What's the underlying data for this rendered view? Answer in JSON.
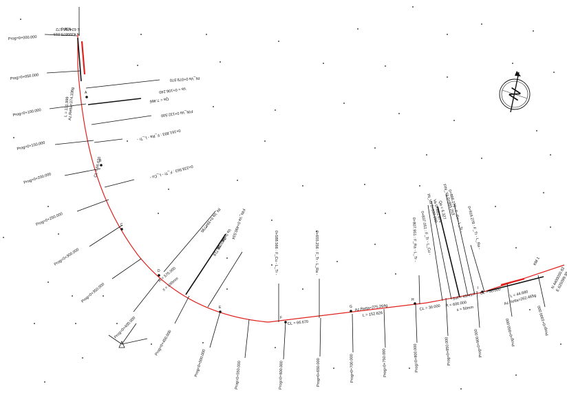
{
  "start": {
    "km": "KM 0",
    "coord_n": "N 4399875.015",
    "coord_e": "E 624766.172"
  },
  "end": {
    "km": "KM 1",
    "coord_n": "N 4400030.82",
    "coord_e": "E 625099.99"
  },
  "colors": {
    "alignment": "#e0201c",
    "ink": "#111111",
    "background": "#ffffff"
  },
  "station_labels": [
    "Prog=0+000.000",
    "Prog=0+050.000",
    "Prog=0+100.000",
    "Prog=0+150.000",
    "Prog=0+200.000",
    "Prog=0+250.000",
    "Prog=0+300.000",
    "Prog=0+350.000",
    "Prog=0+400.000",
    "Prog=0+450.000",
    "Prog=0+500.000",
    "Prog=0+550.000",
    "Prog=0+600.000",
    "Prog=0+650.000",
    "Prog=0+700.000",
    "Prog=0+750.000",
    "Prog=0+800.000",
    "Prog=0+850.000",
    "Prog=0+900.000",
    "Prog=0+950.000",
    "Prog=0+1000.000"
  ],
  "event_labels": [
    "IN_Va 0+079.970",
    "Va = 0+106.240",
    "Qa = 7.466",
    "FIN_Va 0+132.500",
    "0+161.893 : F_Ra - L_Tr -",
    "0+228.563 : F_Tr - L_Cu -",
    "IN_Va 0+394.795",
    "Va 0+442.708",
    "Qa = 16.719",
    "FIN_Va 0+490.534",
    "0+588.566 : F_Cu - L_Tr -",
    "0+655.256 : F_Tr - L_Ra -",
    "0+807.951 : F_Ra - L_Tr -",
    "0+837.051 : F_Tr - L_Cu -",
    "IN_Va 0+839.090",
    "Va 0+861.674",
    "Qa = 6.327",
    "FIN_Va 0+865.253",
    "0+866.278 : F_Cu - L_Tr -",
    "0+916.278 : F_Tr - L_Ra -"
  ],
  "element_labels": [
    "Az.Retta=374.336g",
    "L = 121.999",
    "CL = 66.670",
    "R = 575.000",
    "s = 100mm",
    "CL = 66.670",
    "Az.Retta=275.264g",
    "L = 152.626",
    "CL = 30.000",
    "R = 600.000",
    "s = 50mm",
    "Svil = 49.417",
    "CL = 50.000",
    "L = 44.680",
    "Az.Retta=262.465g"
  ],
  "vertex_letters": [
    "A",
    "B",
    "C",
    "D",
    "E",
    "F",
    "G",
    "H",
    "I"
  ],
  "north_symbol": "N"
}
